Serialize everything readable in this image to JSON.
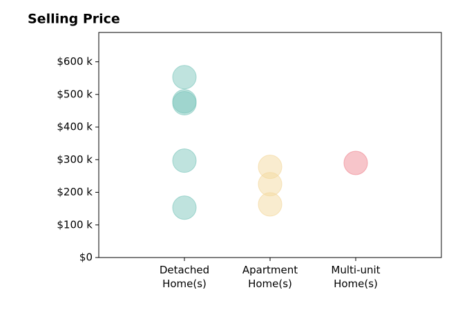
{
  "chart_data": {
    "type": "scatter",
    "title": "Selling Price",
    "categories": [
      "Detached Home(s)",
      "Apartment Home(s)",
      "Multi-unit Home(s)"
    ],
    "values": [
      [
        553000,
        479000,
        473000,
        297000,
        153000
      ],
      [
        278000,
        225000,
        163000
      ],
      [
        290000
      ]
    ],
    "colors": [
      "#7fc8bd",
      "#f3d9a0",
      "#f08c96"
    ],
    "ylim": [
      0,
      690000
    ],
    "yticks": [
      {
        "value": 0,
        "label": "$0"
      },
      {
        "value": 100000,
        "label": "$100 k"
      },
      {
        "value": 200000,
        "label": "$200 k"
      },
      {
        "value": 300000,
        "label": "$300 k"
      },
      {
        "value": 400000,
        "label": "$400 k"
      },
      {
        "value": 500000,
        "label": "$500 k"
      },
      {
        "value": 600000,
        "label": "$600 k"
      }
    ]
  }
}
